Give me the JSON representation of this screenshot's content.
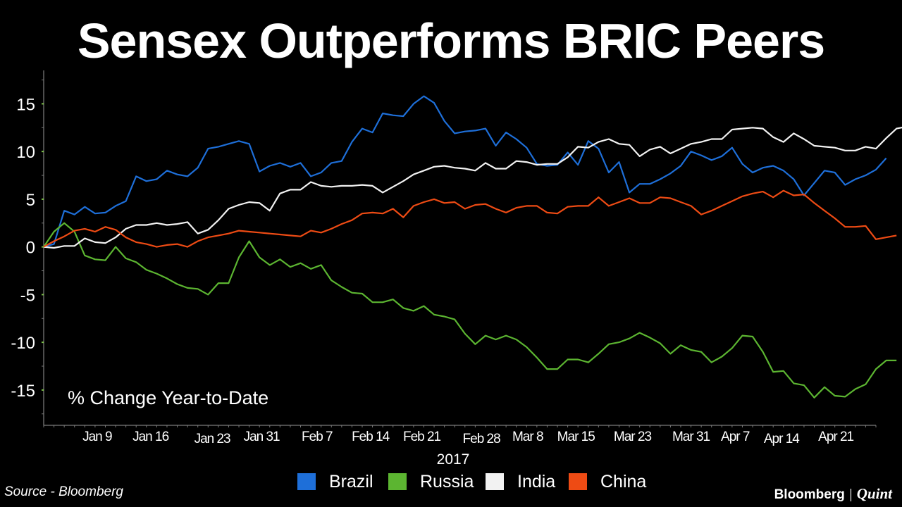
{
  "page": {
    "title": "Sensex Outperforms BRIC Peers",
    "source": "Source - Bloomberg",
    "brand": {
      "left": "Bloomberg",
      "separator": "|",
      "right": "Quint"
    }
  },
  "chart_data": {
    "type": "line",
    "title": "Sensex Outperforms BRIC Peers",
    "annotation": "% Change Year-to-Date",
    "xlabel": "2017",
    "ylabel": "",
    "ylim": [
      -18.7,
      18.5
    ],
    "yticks": [
      15,
      10,
      5,
      0,
      -5,
      -10,
      -15
    ],
    "xlim": [
      0,
      81
    ],
    "xticks": [
      {
        "label": "Jan 9",
        "x": 5.2
      },
      {
        "label": "Jan 16",
        "x": 10.4
      },
      {
        "label": "Jan 23",
        "x": 16.4
      },
      {
        "label": "Jan 31",
        "x": 21.2
      },
      {
        "label": "Feb 7",
        "x": 26.6
      },
      {
        "label": "Feb 14",
        "x": 31.8
      },
      {
        "label": "Feb 21",
        "x": 36.8
      },
      {
        "label": "Feb 28",
        "x": 42.6
      },
      {
        "label": "Mar 8",
        "x": 47.1
      },
      {
        "label": "Mar 15",
        "x": 51.8
      },
      {
        "label": "Mar 23",
        "x": 57.3
      },
      {
        "label": "Mar 31",
        "x": 63.0
      },
      {
        "label": "Apr 7",
        "x": 67.3
      },
      {
        "label": "Apr 14",
        "x": 71.8
      },
      {
        "label": "Apr 21",
        "x": 77.1
      }
    ],
    "legend_position": "bottom",
    "grid": false,
    "series": [
      {
        "name": "Brazil",
        "color": "#1e6fd9",
        "values": [
          0,
          0.3,
          3.8,
          3.4,
          4.2,
          3.5,
          3.6,
          4.3,
          4.8,
          7.4,
          6.9,
          7.1,
          8.0,
          7.6,
          7.4,
          8.3,
          10.3,
          10.5,
          10.8,
          11.1,
          10.8,
          7.9,
          8.5,
          8.8,
          8.4,
          8.8,
          7.4,
          7.8,
          8.8,
          9.0,
          11.0,
          12.4,
          12.0,
          14.0,
          13.8,
          13.7,
          15.0,
          15.8,
          15.1,
          13.2,
          11.9,
          12.1,
          12.2,
          12.4,
          10.6,
          12.0,
          11.3,
          10.4,
          8.7,
          8.5,
          8.6,
          9.9,
          8.6,
          11.1,
          10.3,
          7.8,
          8.9,
          5.7,
          6.6,
          6.6,
          7.1,
          7.7,
          8.5,
          10.0,
          9.6,
          9.1,
          9.5,
          10.4,
          8.7,
          7.8,
          8.3,
          8.5,
          8.0,
          7.1,
          5.4,
          6.7,
          8.0,
          7.8,
          6.5,
          7.1,
          7.5,
          8.1,
          9.3
        ]
      },
      {
        "name": "Russia",
        "color": "#5cb531",
        "values": [
          0,
          1.6,
          2.5,
          1.6,
          -0.9,
          -1.3,
          -1.4,
          0,
          -1.2,
          -1.6,
          -2.4,
          -2.8,
          -3.3,
          -3.9,
          -4.3,
          -4.4,
          -5.0,
          -3.8,
          -3.8,
          -1.1,
          0.6,
          -1.1,
          -1.9,
          -1.3,
          -2.1,
          -1.7,
          -2.3,
          -1.9,
          -3.5,
          -4.2,
          -4.8,
          -4.9,
          -5.8,
          -5.8,
          -5.5,
          -6.4,
          -6.7,
          -6.2,
          -7.1,
          -7.3,
          -7.6,
          -9.1,
          -10.2,
          -9.3,
          -9.7,
          -9.3,
          -9.7,
          -10.5,
          -11.6,
          -12.8,
          -12.8,
          -11.8,
          -11.8,
          -12.1,
          -11.2,
          -10.2,
          -10.0,
          -9.6,
          -9.0,
          -9.5,
          -10.1,
          -11.2,
          -10.3,
          -10.8,
          -11.0,
          -12.1,
          -11.5,
          -10.6,
          -9.3,
          -9.4,
          -11.0,
          -13.1,
          -13.0,
          -14.3,
          -14.5,
          -15.8,
          -14.7,
          -15.6,
          -15.7,
          -14.9,
          -14.4,
          -12.8,
          -11.9,
          -11.9
        ]
      },
      {
        "name": "India",
        "color": "#f2f2f2",
        "values": [
          0,
          -0.1,
          0.1,
          0.1,
          0.9,
          0.5,
          0.4,
          1.0,
          1.9,
          2.3,
          2.3,
          2.5,
          2.3,
          2.4,
          2.6,
          1.4,
          1.8,
          2.8,
          4.0,
          4.4,
          4.7,
          4.6,
          3.8,
          5.6,
          6.0,
          6.0,
          6.8,
          6.4,
          6.3,
          6.4,
          6.4,
          6.5,
          6.4,
          5.7,
          6.3,
          6.9,
          7.6,
          8.0,
          8.4,
          8.5,
          8.3,
          8.2,
          8.0,
          8.8,
          8.2,
          8.2,
          9.0,
          8.9,
          8.6,
          8.7,
          8.7,
          9.4,
          10.5,
          10.4,
          11.0,
          11.3,
          10.8,
          10.7,
          9.5,
          10.2,
          10.5,
          9.8,
          10.3,
          10.8,
          11.0,
          11.3,
          11.3,
          12.3,
          12.4,
          12.5,
          12.4,
          11.5,
          11.0,
          11.9,
          11.3,
          10.6,
          10.5,
          10.4,
          10.1,
          10.1,
          10.5,
          10.3,
          11.4,
          12.4,
          12.6
        ]
      },
      {
        "name": "China",
        "color": "#ee4b14",
        "values": [
          0,
          0.6,
          1.1,
          1.7,
          1.9,
          1.6,
          2.1,
          1.8,
          1.0,
          0.5,
          0.3,
          0,
          0.2,
          0.3,
          0,
          0.6,
          1.0,
          1.2,
          1.4,
          1.7,
          1.6,
          1.5,
          1.4,
          1.3,
          1.2,
          1.1,
          1.7,
          1.5,
          1.9,
          2.4,
          2.8,
          3.5,
          3.6,
          3.5,
          4.0,
          3.1,
          4.3,
          4.7,
          5.0,
          4.6,
          4.7,
          4.0,
          4.4,
          4.5,
          4.0,
          3.6,
          4.1,
          4.3,
          4.3,
          3.6,
          3.5,
          4.2,
          4.3,
          4.3,
          5.2,
          4.3,
          4.7,
          5.1,
          4.6,
          4.6,
          5.2,
          5.1,
          4.7,
          4.3,
          3.4,
          3.8,
          4.3,
          4.8,
          5.3,
          5.6,
          5.8,
          5.2,
          5.9,
          5.4,
          5.5,
          4.6,
          3.8,
          3.0,
          2.1,
          2.1,
          2.2,
          0.8,
          1.0,
          1.2
        ]
      }
    ]
  }
}
